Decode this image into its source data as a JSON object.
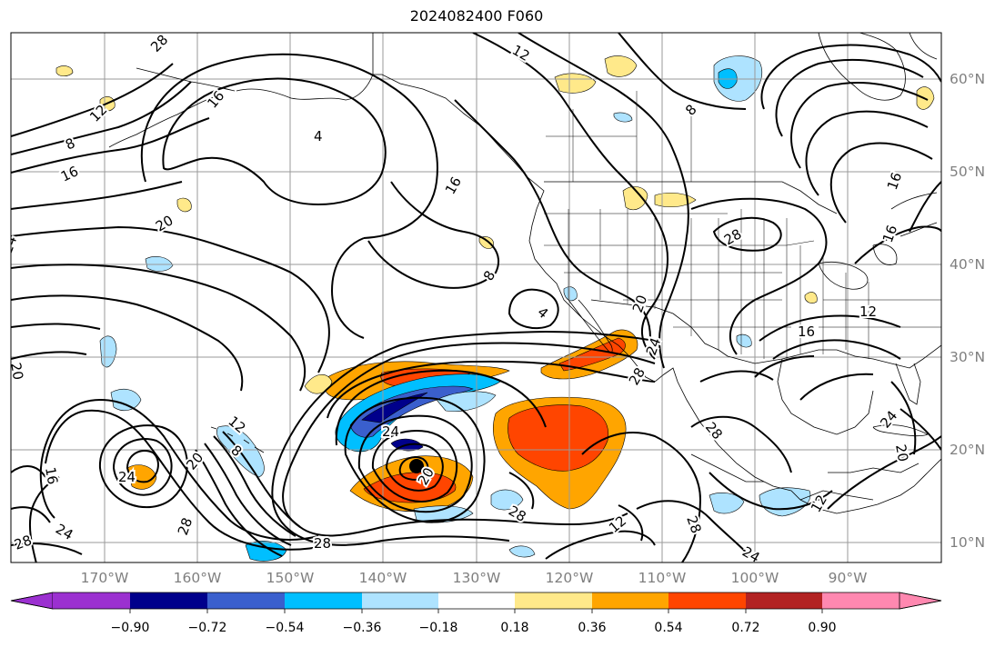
{
  "title": "2024082400 F060",
  "lon_labels": [
    "170°W",
    "160°W",
    "150°W",
    "140°W",
    "130°W",
    "120°W",
    "110°W",
    "100°W",
    "90°W"
  ],
  "lat_labels": [
    "60°N",
    "50°N",
    "40°N",
    "30°N",
    "20°N",
    "10°N"
  ],
  "colorbar": {
    "colors": [
      "#9b30d0",
      "#00008b",
      "#3a5fcd",
      "#00bfff",
      "#aee3ff",
      "#ffffff",
      "#ffe98a",
      "#ffa500",
      "#ff4500",
      "#b22222",
      "#ff88b0"
    ],
    "labels": [
      "−0.90",
      "−0.72",
      "−0.54",
      "−0.36",
      "−0.18",
      "0.18",
      "0.36",
      "0.54",
      "0.72",
      "0.90"
    ]
  },
  "contour_labels": [
    "28",
    "12",
    "8",
    "16",
    "20",
    "4",
    "16",
    "12",
    "8",
    "16",
    "20",
    "16",
    "12",
    "8",
    "4",
    "24",
    "20",
    "24",
    "16",
    "12",
    "28",
    "24",
    "20",
    "16",
    "12",
    "28",
    "24",
    "28",
    "28",
    "28",
    "24",
    "28",
    "20",
    "24",
    "28",
    "24",
    "8",
    "16",
    "20",
    "12",
    "28",
    "24"
  ],
  "storm_center": {
    "lon": "136W",
    "lat": "18N"
  }
}
